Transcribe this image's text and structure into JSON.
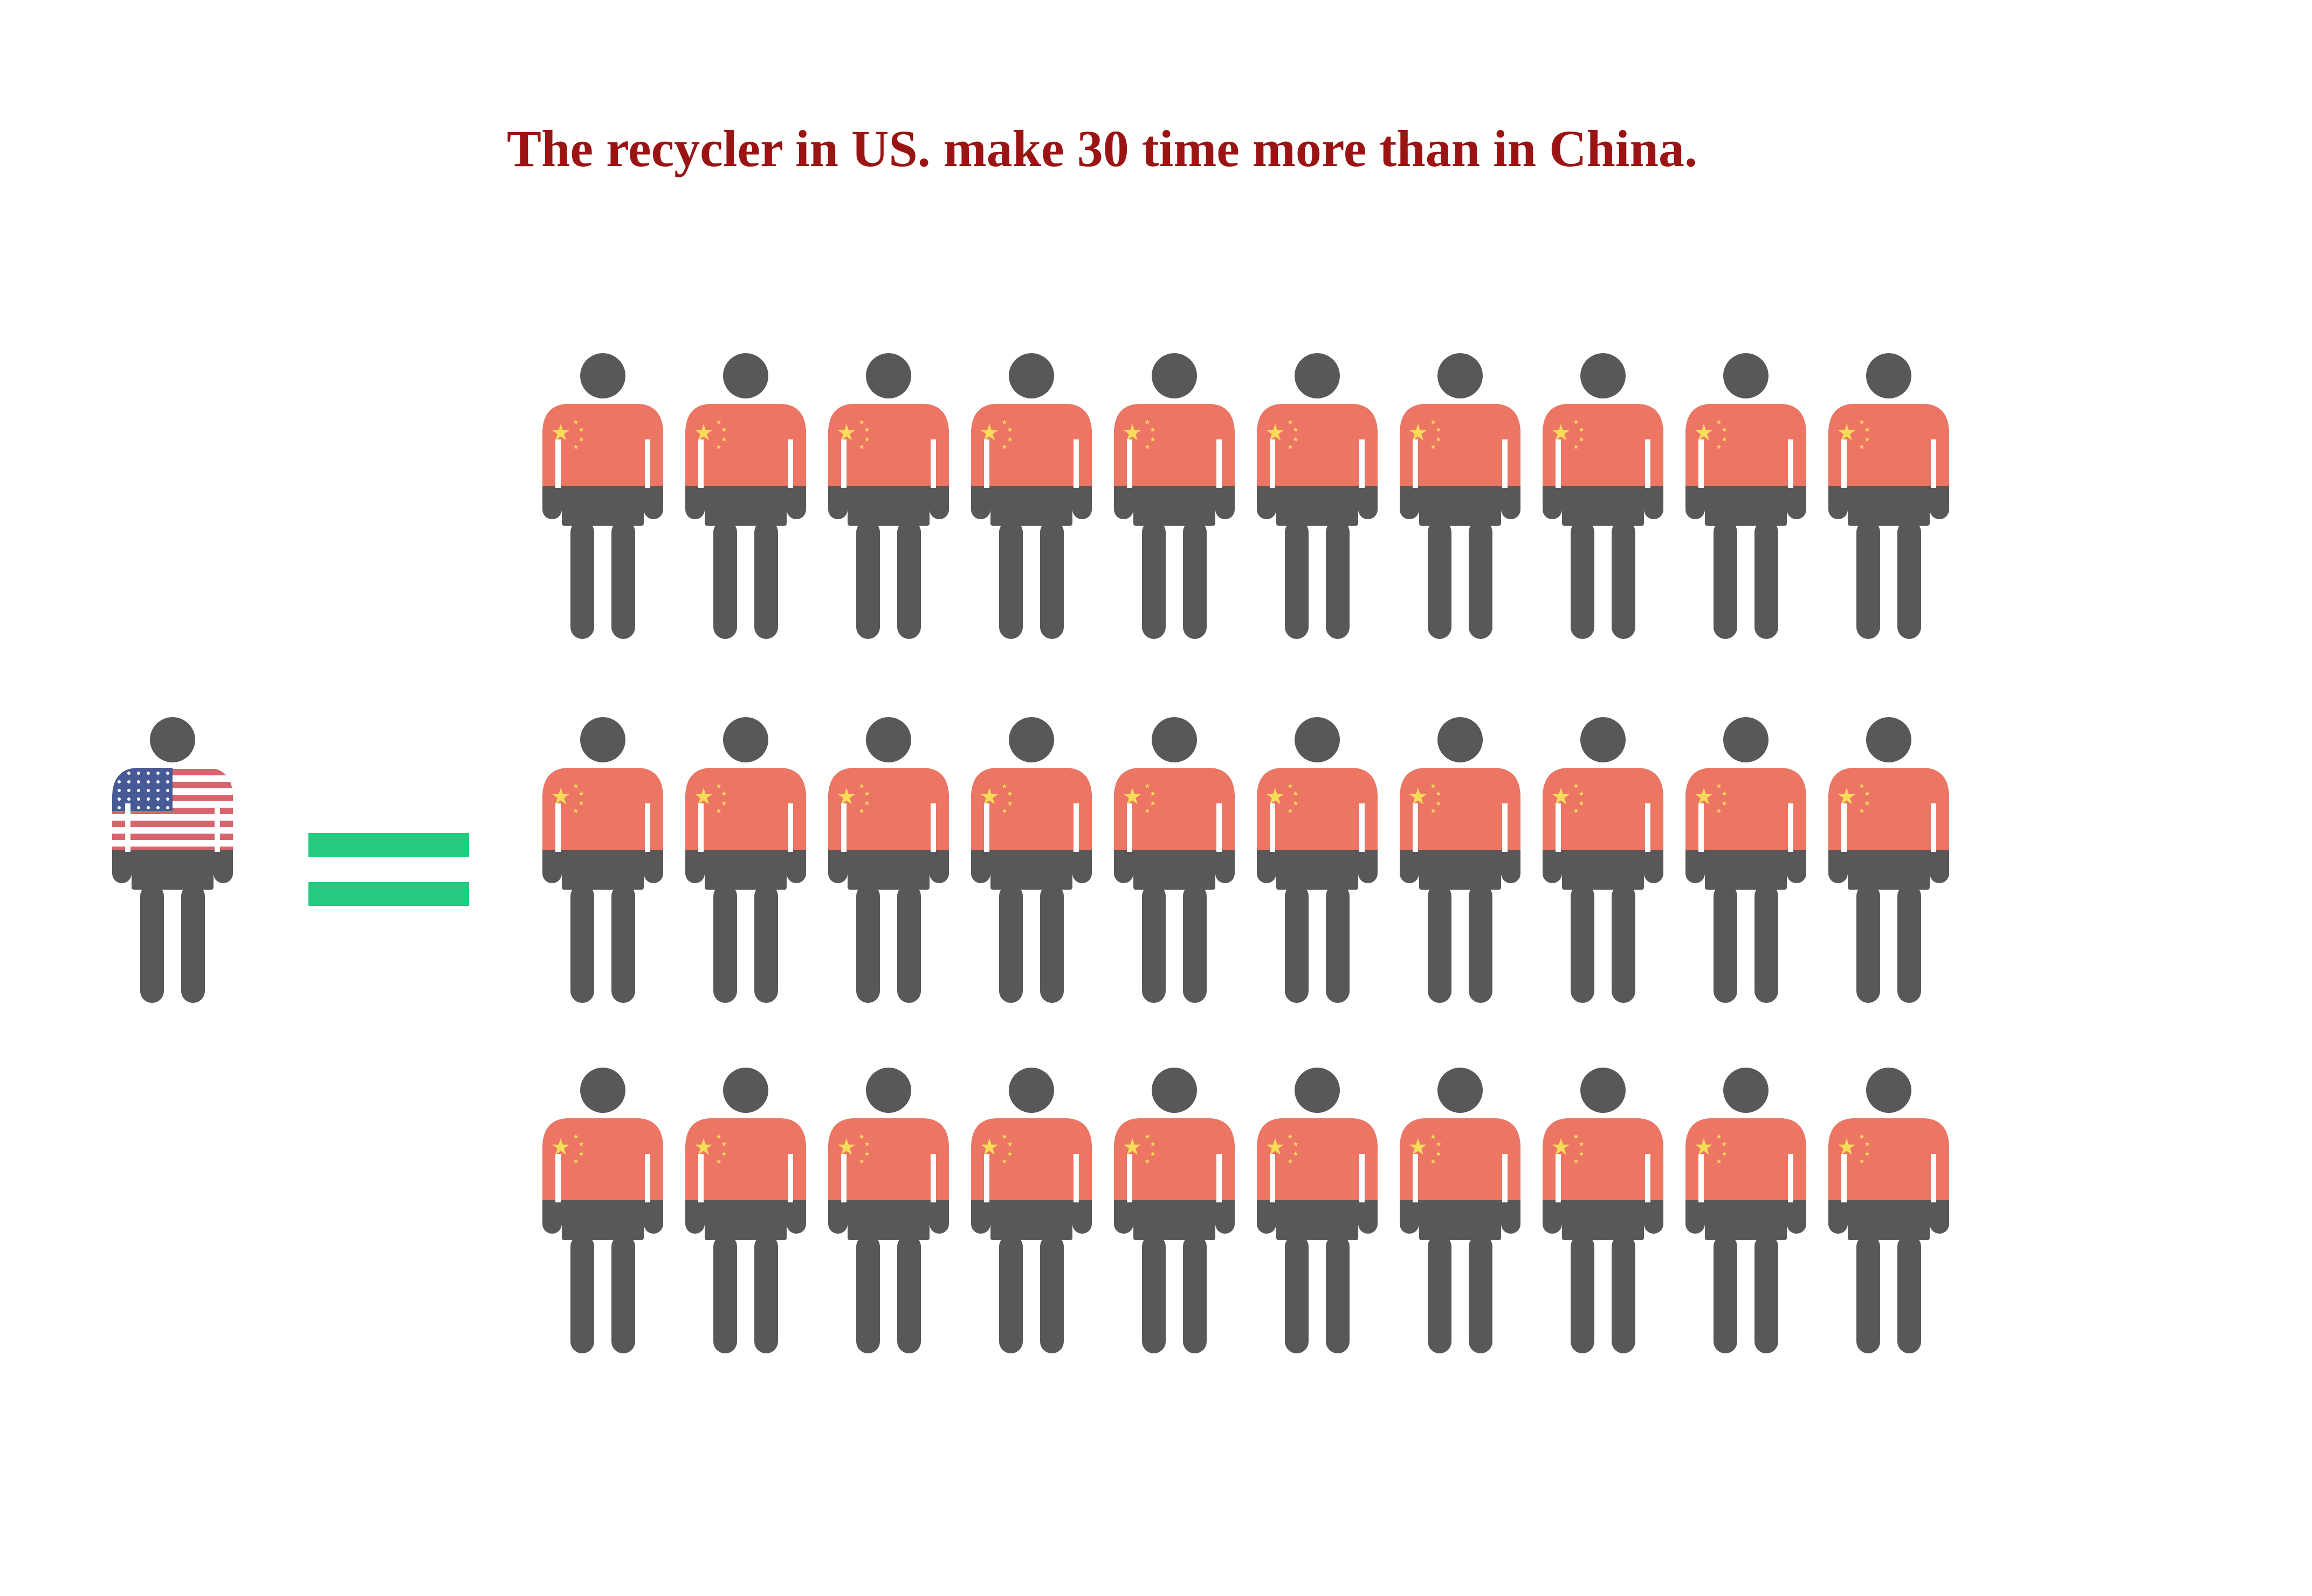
{
  "title": "The recycler in US. make 30 time more than in China.",
  "colors": {
    "title": "#9b1414",
    "figure_dark": "#585858",
    "china_red": "#ec7564",
    "china_star": "#f7dc5a",
    "us_red": "#d9646d",
    "us_white": "#ffffff",
    "us_blue": "#475a95",
    "equals": "#24ca7d"
  },
  "comparison": {
    "us_figures": 1,
    "china_figures": 30,
    "china_rows": 3,
    "china_per_row": 10,
    "symbol": "equals-sign"
  }
}
